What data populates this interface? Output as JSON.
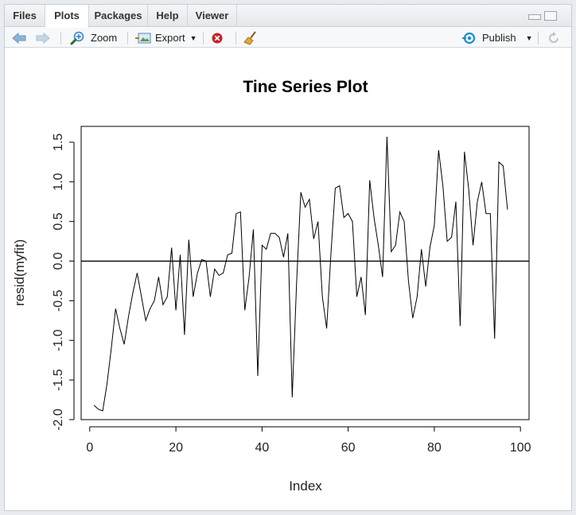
{
  "tabs": [
    {
      "label": "Files",
      "active": false
    },
    {
      "label": "Plots",
      "active": true
    },
    {
      "label": "Packages",
      "active": false
    },
    {
      "label": "Help",
      "active": false
    },
    {
      "label": "Viewer",
      "active": false
    }
  ],
  "toolbar": {
    "back_icon": "arrow-left-icon",
    "forward_icon": "arrow-right-icon",
    "zoom_label": "Zoom",
    "export_label": "Export",
    "remove_icon": "remove-plot-icon",
    "clear_icon": "broom-icon",
    "publish_label": "Publish",
    "refresh_icon": "refresh-icon",
    "accent": "#1a8fd1"
  },
  "chart_data": {
    "type": "line",
    "title": "Tine Series Plot",
    "xlabel": "Index",
    "ylabel": "resid(myfit)",
    "xlim": [
      -2,
      102
    ],
    "ylim": [
      -2.0,
      1.7
    ],
    "xticks": [
      "0",
      "20",
      "40",
      "60",
      "80",
      "100"
    ],
    "yticks": [
      "-2.0",
      "-1.5",
      "-1.0",
      "-0.5",
      "0.0",
      "0.5",
      "1.0",
      "1.5"
    ],
    "hline": 0,
    "grid": false,
    "x": [
      1,
      2,
      3,
      4,
      5,
      6,
      7,
      8,
      9,
      10,
      11,
      12,
      13,
      14,
      15,
      16,
      17,
      18,
      19,
      20,
      21,
      22,
      23,
      24,
      25,
      26,
      27,
      28,
      29,
      30,
      31,
      32,
      33,
      34,
      35,
      36,
      37,
      38,
      39,
      40,
      41,
      42,
      43,
      44,
      45,
      46,
      47,
      48,
      49,
      50,
      51,
      52,
      53,
      54,
      55,
      56,
      57,
      58,
      59,
      60,
      61,
      62,
      63,
      64,
      65,
      66,
      67,
      68,
      69,
      70,
      71,
      72,
      73,
      74,
      75,
      76,
      77,
      78,
      79,
      80,
      81,
      82,
      83,
      84,
      85,
      86,
      87,
      88,
      89,
      90,
      91,
      92,
      93,
      94,
      95,
      96,
      97
    ],
    "values": [
      -1.82,
      -1.87,
      -1.89,
      -1.55,
      -1.1,
      -0.6,
      -0.85,
      -1.05,
      -0.7,
      -0.4,
      -0.15,
      -0.45,
      -0.75,
      -0.6,
      -0.5,
      -0.2,
      -0.55,
      -0.45,
      0.17,
      -0.62,
      0.08,
      -0.93,
      0.27,
      -0.45,
      -0.15,
      0.02,
      0.0,
      -0.45,
      -0.1,
      -0.18,
      -0.15,
      0.08,
      0.1,
      0.6,
      0.62,
      -0.62,
      -0.2,
      0.4,
      -1.45,
      0.2,
      0.15,
      0.35,
      0.35,
      0.3,
      0.05,
      0.35,
      -1.72,
      -0.3,
      0.87,
      0.68,
      0.78,
      0.28,
      0.5,
      -0.45,
      -0.85,
      0.1,
      0.92,
      0.95,
      0.55,
      0.6,
      0.5,
      -0.45,
      -0.2,
      -0.68,
      1.02,
      0.55,
      0.2,
      -0.2,
      1.57,
      0.12,
      0.2,
      0.62,
      0.5,
      -0.25,
      -0.72,
      -0.45,
      0.15,
      -0.32,
      0.18,
      0.45,
      1.4,
      0.95,
      0.25,
      0.3,
      0.75,
      -0.82,
      1.38,
      0.9,
      0.2,
      0.75,
      1.0,
      0.6,
      0.6,
      -0.98,
      1.25,
      1.2,
      0.65
    ]
  }
}
